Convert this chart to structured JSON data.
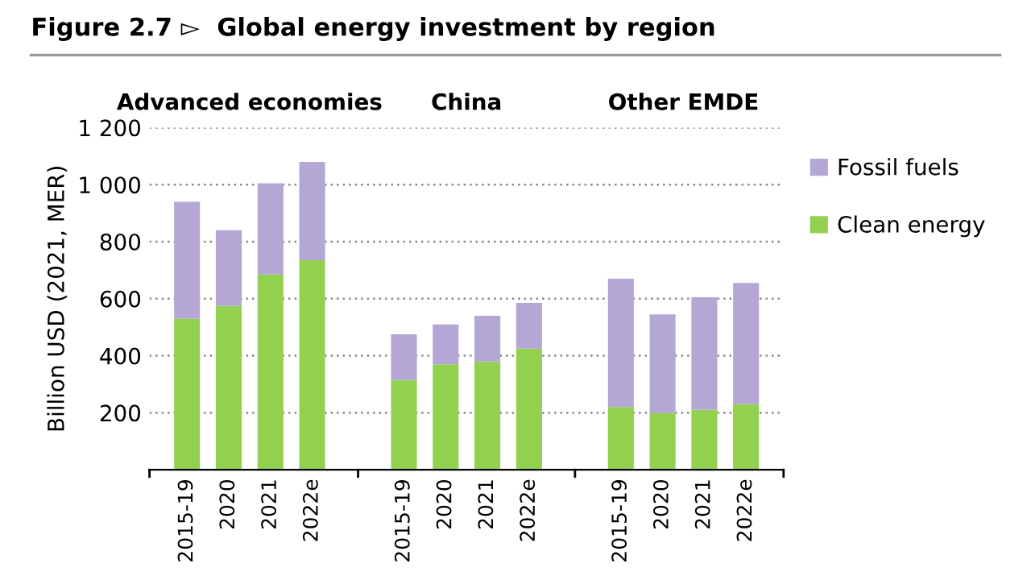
{
  "chart_data": {
    "type": "bar",
    "title": "Figure 2.7 ▻  Global energy investment by region",
    "ylabel": "Billion USD (2021, MER)",
    "annotations": [
      "Advanced economies",
      "China",
      "Other EMDE"
    ],
    "categories": [
      "2015-19",
      "2020",
      "2021",
      "2022e",
      "2015-19",
      "2020",
      "2021",
      "2022e",
      "2015-19",
      "2020",
      "2021",
      "2022e"
    ],
    "series": [
      {
        "name": "Clean energy",
        "color": "#92d050",
        "values": [
          530,
          575,
          685,
          735,
          315,
          370,
          380,
          425,
          220,
          200,
          210,
          230
        ]
      },
      {
        "name": "Fossil fuels",
        "color": "#b4a7d6",
        "values": [
          410,
          265,
          320,
          345,
          160,
          140,
          160,
          160,
          450,
          345,
          395,
          425
        ]
      }
    ],
    "stacked": true,
    "ylim": [
      0,
      1200
    ],
    "yticks": [
      {
        "value": 0,
        "label": null
      },
      200,
      400,
      600,
      800,
      {
        "value": 1000,
        "label": "1 000"
      },
      {
        "value": 1200,
        "label": "1 200"
      }
    ],
    "grid": "y",
    "legend": "top right"
  }
}
